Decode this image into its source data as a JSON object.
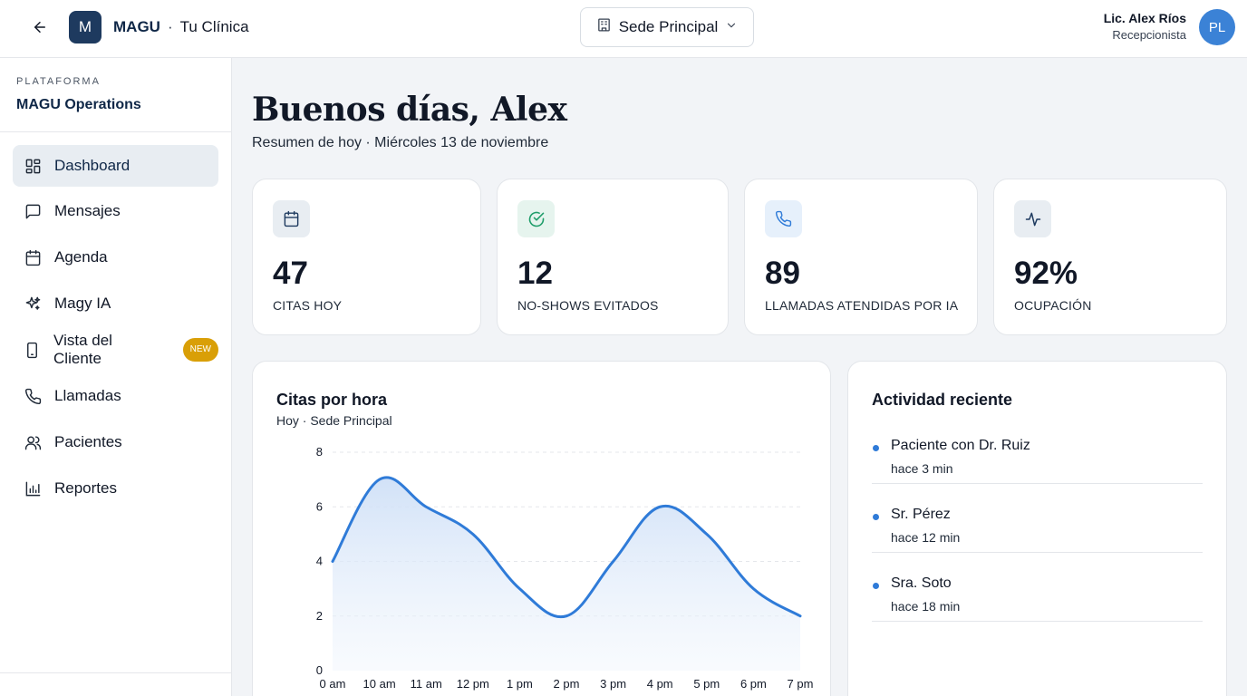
{
  "header": {
    "back_icon": "arrow-left-icon",
    "logo_letter": "M",
    "brand_name": "MAGU",
    "brand_separator": "·",
    "brand_sub": "Tu Clínica",
    "location_select": {
      "icon": "building-icon",
      "value": "Sede Principal"
    },
    "user": {
      "name": "Lic. Alex Ríos",
      "role": "Recepcionista",
      "initials": "PL"
    }
  },
  "sidebar": {
    "platform_label": "PLATAFORMA",
    "platform_name": "MAGU Operations",
    "items": [
      {
        "label": "Dashboard",
        "icon": "grid-icon",
        "active": true
      },
      {
        "label": "Mensajes",
        "icon": "message-icon"
      },
      {
        "label": "Agenda",
        "icon": "calendar-icon"
      },
      {
        "label": "Magy IA",
        "icon": "sparkles-icon"
      },
      {
        "label": "Vista del Cliente",
        "icon": "smartphone-icon",
        "badge": "NEW"
      },
      {
        "label": "Llamadas",
        "icon": "phone-icon"
      },
      {
        "label": "Pacientes",
        "icon": "users-icon"
      },
      {
        "label": "Reportes",
        "icon": "bar-chart-icon"
      }
    ]
  },
  "main": {
    "greeting": "Buenos días, Alex",
    "subtitle": "Resumen de hoy · Miércoles 13 de noviembre",
    "stats": [
      {
        "value": "47",
        "label": "CITAS HOY",
        "icon": "calendar-icon"
      },
      {
        "value": "12",
        "label": "NO-SHOWS EVITADOS",
        "icon": "check-circle-icon"
      },
      {
        "value": "89",
        "label": "LLAMADAS ATENDIDAS POR IA",
        "icon": "phone-icon"
      },
      {
        "value": "92%",
        "label": "OCUPACIÓN",
        "icon": "activity-icon"
      }
    ],
    "chart_panel": {
      "title": "Citas por hora",
      "subtitle": "Hoy · Sede Principal"
    },
    "activity": {
      "title": "Actividad reciente",
      "items": [
        {
          "title": "Paciente con Dr. Ruiz",
          "time": "hace 3 min"
        },
        {
          "title": "Sr. Pérez",
          "time": "hace 12 min"
        },
        {
          "title": "Sra. Soto",
          "time": "hace 18 min"
        }
      ]
    }
  },
  "colors": {
    "primary": "#1e3a5f",
    "accent": "#2f7bd8",
    "badge": "#d99f07",
    "avatar": "#3b82d6"
  },
  "chart_data": {
    "type": "area",
    "title": "Citas por hora",
    "subtitle": "Hoy · Sede Principal",
    "xlabel": "",
    "ylabel": "",
    "categories": [
      "0 am",
      "10 am",
      "11 am",
      "12 pm",
      "1 pm",
      "2 pm",
      "3 pm",
      "4 pm",
      "5 pm",
      "6 pm",
      "7 pm"
    ],
    "values": [
      4,
      7,
      6,
      5,
      3,
      2,
      4,
      6,
      5,
      3,
      2
    ],
    "ylim": [
      0,
      8
    ],
    "yticks": [
      0,
      2,
      4,
      6,
      8
    ],
    "grid": true,
    "legend": "none"
  }
}
